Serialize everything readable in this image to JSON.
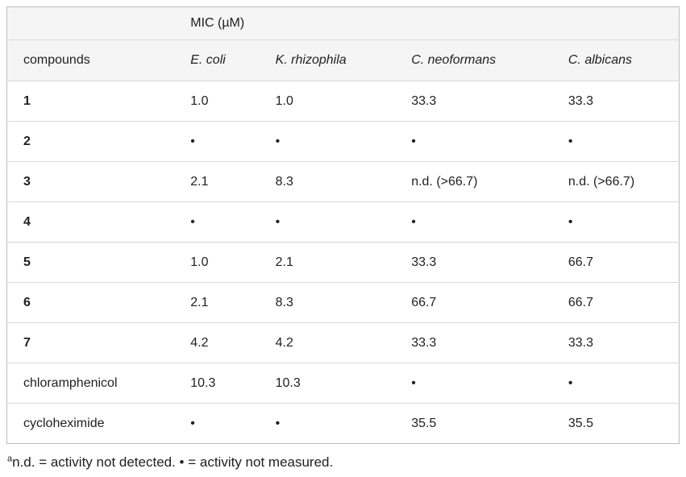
{
  "table": {
    "spanner_header": "MIC (µM)",
    "columns": [
      "compounds",
      "E. coli",
      "K. rhizophila",
      "C. neoformans",
      "C. albicans"
    ],
    "rows": [
      {
        "compound": "1",
        "bold": true,
        "values": [
          "1.0",
          "1.0",
          "33.3",
          "33.3"
        ]
      },
      {
        "compound": "2",
        "bold": true,
        "values": [
          "•",
          "•",
          "•",
          "•"
        ]
      },
      {
        "compound": "3",
        "bold": true,
        "values": [
          "2.1",
          "8.3",
          "n.d. (>66.7)",
          "n.d. (>66.7)"
        ]
      },
      {
        "compound": "4",
        "bold": true,
        "values": [
          "•",
          "•",
          "•",
          "•"
        ]
      },
      {
        "compound": "5",
        "bold": true,
        "values": [
          "1.0",
          "2.1",
          "33.3",
          "66.7"
        ]
      },
      {
        "compound": "6",
        "bold": true,
        "values": [
          "2.1",
          "8.3",
          "66.7",
          "66.7"
        ]
      },
      {
        "compound": "7",
        "bold": true,
        "values": [
          "4.2",
          "4.2",
          "33.3",
          "33.3"
        ]
      },
      {
        "compound": "chloramphenicol",
        "bold": false,
        "values": [
          "10.3",
          "10.3",
          "•",
          "•"
        ]
      },
      {
        "compound": "cycloheximide",
        "bold": false,
        "values": [
          "•",
          "•",
          "35.5",
          "35.5"
        ]
      }
    ]
  },
  "footnote": {
    "marker": "a",
    "text": "n.d. = activity not detected. • = activity not measured."
  },
  "colors": {
    "header_bg": "#f5f5f6",
    "outer_border": "#bdbdbf",
    "row_border": "#d9d9db",
    "text": "#212121"
  }
}
